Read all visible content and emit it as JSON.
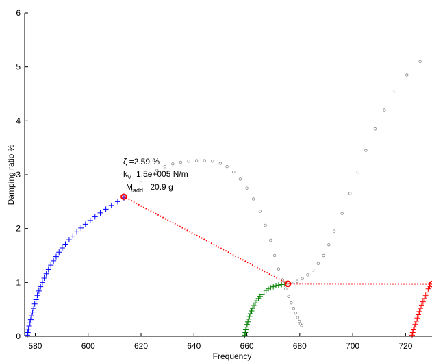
{
  "chart_data": {
    "type": "scatter",
    "title": "",
    "xlabel": "Frequency",
    "ylabel": "Damping ratio %",
    "xlim": [
      576,
      730
    ],
    "ylim": [
      0,
      6
    ],
    "xticks": [
      580,
      600,
      620,
      640,
      660,
      680,
      700,
      720
    ],
    "yticks": [
      0,
      1,
      2,
      3,
      4,
      5,
      6
    ],
    "grid": false,
    "legend": "none",
    "colors": {
      "mode1": "#0000ff",
      "mode2": "#008000",
      "mode3": "#ff0000",
      "locus": "#888888",
      "selection": "#ff0000"
    },
    "series": [
      {
        "marker": "plus",
        "color": "#0000ff",
        "x": [
          577,
          577.2,
          577.4,
          577.7,
          578,
          578.3,
          578.6,
          579,
          579.4,
          579.8,
          580.3,
          580.8,
          581.4,
          582,
          582.7,
          583.4,
          584.2,
          585,
          585.9,
          586.9,
          587.9,
          589,
          590.2,
          591.4,
          592.8,
          594.2,
          595.7,
          597.3,
          599,
          600.8,
          602.6,
          604.6,
          606.7,
          608.8,
          611.2,
          613.5
        ],
        "y": [
          0.02,
          0.07,
          0.13,
          0.19,
          0.25,
          0.31,
          0.38,
          0.45,
          0.52,
          0.6,
          0.68,
          0.76,
          0.84,
          0.92,
          1.0,
          1.08,
          1.16,
          1.24,
          1.32,
          1.4,
          1.48,
          1.56,
          1.64,
          1.71,
          1.79,
          1.86,
          1.94,
          2.01,
          2.08,
          2.15,
          2.22,
          2.29,
          2.36,
          2.43,
          2.5,
          2.57
        ]
      },
      {
        "marker": "plus",
        "color": "#008000",
        "x": [
          659.2,
          659.4,
          659.6,
          659.8,
          660.1,
          660.4,
          660.7,
          661,
          661.4,
          661.8,
          662.2,
          662.7,
          663.2,
          663.8,
          664.4,
          665,
          665.7,
          666.5,
          667.3,
          668.1,
          669,
          670,
          671,
          672,
          673.1,
          674.3,
          675.5
        ],
        "y": [
          0.02,
          0.07,
          0.12,
          0.17,
          0.22,
          0.27,
          0.32,
          0.37,
          0.42,
          0.47,
          0.52,
          0.57,
          0.62,
          0.66,
          0.7,
          0.74,
          0.78,
          0.82,
          0.85,
          0.88,
          0.9,
          0.92,
          0.94,
          0.95,
          0.96,
          0.97,
          0.975
        ]
      },
      {
        "marker": "plus",
        "color": "#ff0000",
        "x": [
          722.5,
          722.7,
          723,
          723.3,
          723.6,
          724,
          724.4,
          724.8,
          725.2,
          725.6,
          726.1,
          726.6,
          727.1,
          727.6,
          728.1,
          728.6,
          729.1,
          729.6
        ],
        "y": [
          0.02,
          0.07,
          0.12,
          0.17,
          0.22,
          0.28,
          0.34,
          0.4,
          0.46,
          0.52,
          0.58,
          0.64,
          0.7,
          0.76,
          0.82,
          0.88,
          0.93,
          0.98
        ]
      },
      {
        "marker": "circle",
        "color": "#888888",
        "x": [
          617,
          620,
          623,
          626,
          629,
          632,
          635,
          638,
          641,
          644,
          647,
          650,
          652.5,
          655,
          657.5,
          660,
          662.5,
          665,
          667,
          669,
          670.5,
          672,
          673.5,
          674.7,
          675.8,
          676.8,
          677.7,
          678.5,
          679.2,
          679.8,
          680.3,
          680.7
        ],
        "y": [
          2.7,
          2.85,
          2.98,
          3.08,
          3.15,
          3.2,
          3.23,
          3.25,
          3.26,
          3.26,
          3.25,
          3.21,
          3.15,
          3.05,
          2.92,
          2.75,
          2.55,
          2.32,
          2.06,
          1.78,
          1.5,
          1.25,
          1.05,
          0.88,
          0.74,
          0.62,
          0.52,
          0.43,
          0.35,
          0.28,
          0.23,
          0.2
        ]
      },
      {
        "marker": "circle",
        "color": "#888888",
        "x": [
          677,
          679,
          681,
          683,
          685,
          687,
          689,
          691,
          693,
          696,
          699,
          702,
          705,
          708.5,
          712,
          716,
          720.5,
          725.5
        ],
        "y": [
          0.99,
          1.02,
          1.07,
          1.14,
          1.23,
          1.35,
          1.5,
          1.7,
          1.95,
          2.28,
          2.65,
          3.05,
          3.45,
          3.85,
          4.2,
          4.55,
          4.85,
          5.1
        ]
      },
      {
        "marker": "circle-large",
        "color": "#ff0000",
        "dotted_line": true,
        "x": [
          613.5,
          675.5,
          730
        ],
        "y": [
          2.59,
          0.975,
          0.97
        ]
      }
    ],
    "annotations": [
      {
        "x": 613.5,
        "y": 2.59,
        "lines": [
          "ζ =2.59 %",
          "kV=1.5e+005 N/m",
          "Madd= 20.9 g"
        ]
      }
    ]
  }
}
